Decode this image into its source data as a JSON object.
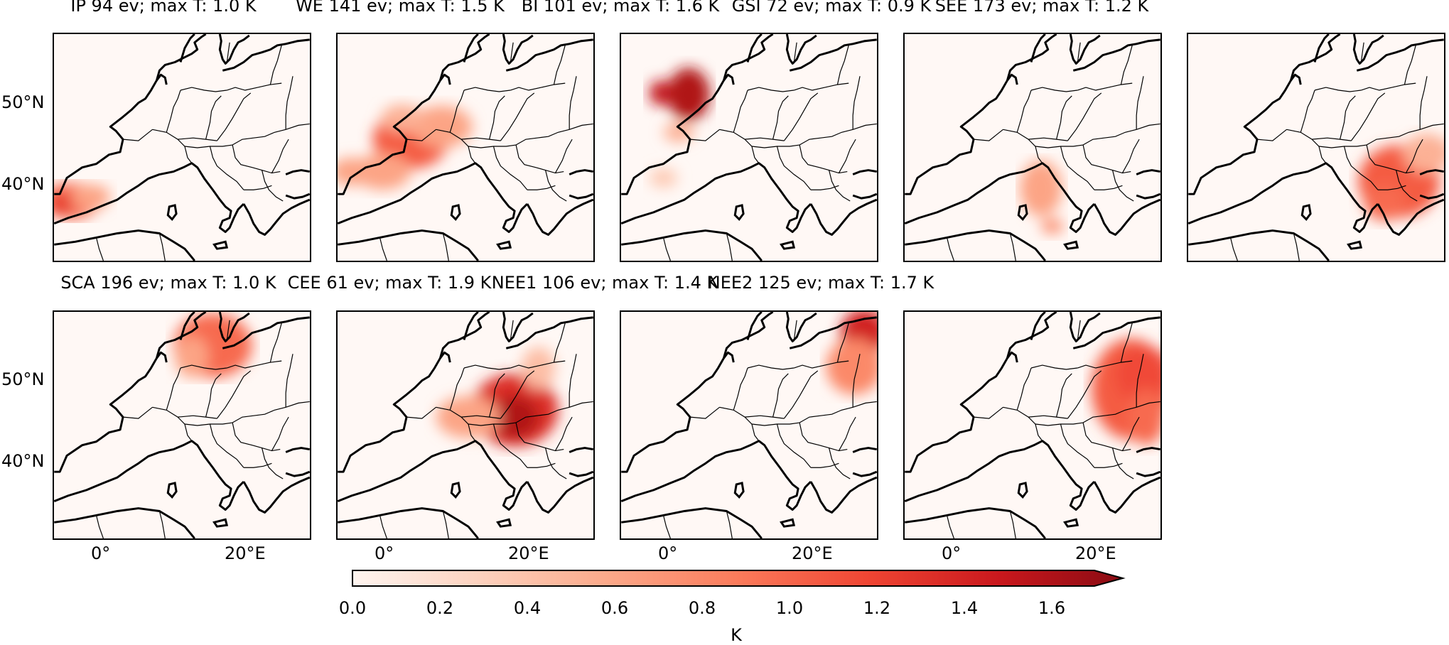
{
  "panels": [
    {
      "region": "IP",
      "title": "IP 94 ev; max T: 1.0 K",
      "events": 94,
      "max_t_k": 1.0
    },
    {
      "region": "WE",
      "title": "WE 141 ev; max T: 1.5 K",
      "events": 141,
      "max_t_k": 1.5
    },
    {
      "region": "BI",
      "title": "BI 101 ev; max T: 1.6 K",
      "events": 101,
      "max_t_k": 1.6
    },
    {
      "region": "GSI",
      "title": "GSI 72 ev; max T: 0.9 K",
      "events": 72,
      "max_t_k": 0.9
    },
    {
      "region": "SEE",
      "title": "SEE 173 ev; max T: 1.2 K",
      "events": 173,
      "max_t_k": 1.2
    },
    {
      "region": "SCA",
      "title": "SCA 196 ev; max T: 1.0 K",
      "events": 196,
      "max_t_k": 1.0
    },
    {
      "region": "CEE",
      "title": "CEE 61 ev; max T: 1.9 K",
      "events": 61,
      "max_t_k": 1.9
    },
    {
      "region": "NEE1",
      "title": "NEE1 106 ev; max T: 1.4 K",
      "events": 106,
      "max_t_k": 1.4
    },
    {
      "region": "NEE2",
      "title": "NEE2 125 ev; max T: 1.7 K",
      "events": 125,
      "max_t_k": 1.7
    }
  ],
  "axes": {
    "lat_ticks": [
      "50°N",
      "40°N"
    ],
    "lon_ticks": [
      "0°",
      "20°E"
    ]
  },
  "colorbar": {
    "ticks": [
      "0.0",
      "0.2",
      "0.4",
      "0.6",
      "0.8",
      "1.0",
      "1.2",
      "1.4",
      "1.6"
    ],
    "label": "K",
    "range": [
      0.0,
      1.7
    ],
    "extend": "max",
    "colormap": [
      "#fff5f0",
      "#fdd3c0",
      "#fca98a",
      "#fb7b5b",
      "#ef4533",
      "#c9181d",
      "#8a0b13"
    ]
  }
}
